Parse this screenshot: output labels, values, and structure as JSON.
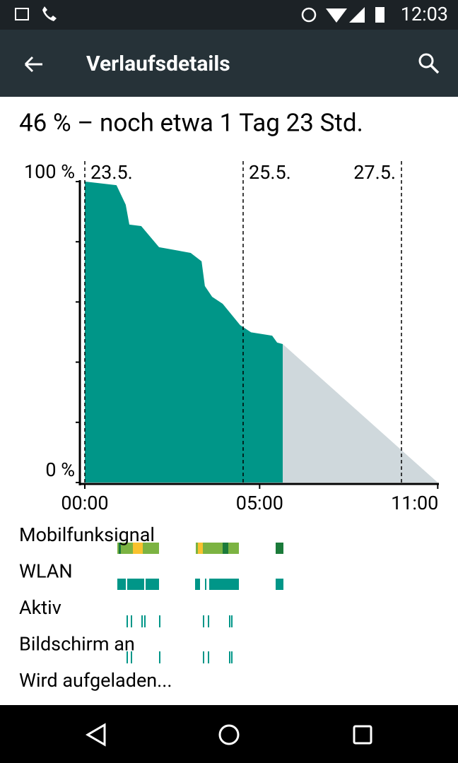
{
  "status_bar": {
    "time": "12:03"
  },
  "header": {
    "title": "Verlaufsdetails"
  },
  "summary": "46 % – noch etwa 1 Tag 23 Std.",
  "chart_data": {
    "type": "area",
    "xlim": [
      0,
      107
    ],
    "ylim": [
      0,
      100
    ],
    "yticks": [
      {
        "value": 100,
        "label": "100 %"
      },
      {
        "value": 0,
        "label": "0 %"
      }
    ],
    "minor_yticks": [
      20,
      40,
      60,
      80
    ],
    "xticks": [
      {
        "value": 0,
        "label": "00:00"
      },
      {
        "value": 53,
        "label": "05:00"
      },
      {
        "value": 107,
        "label": "11:00"
      }
    ],
    "date_markers": [
      {
        "value": 0,
        "label": "23.5."
      },
      {
        "value": 48,
        "label": "25.5."
      },
      {
        "value": 96,
        "label": "27.5."
      }
    ],
    "series": [
      {
        "color": "#009688",
        "x": [
          0,
          9.6,
          12.4,
          13.5,
          17.1,
          22.5,
          32.1,
          35.4,
          36.4,
          38.6,
          41.8,
          47.1,
          50.4,
          56.8,
          58.3,
          60
        ],
        "values": [
          100,
          98.8,
          92.3,
          85.7,
          85.2,
          78.2,
          76.3,
          73.5,
          65.3,
          61.7,
          59.4,
          52.3,
          49.9,
          48.8,
          46.5,
          46
        ]
      },
      {
        "color": "#cfd8dc",
        "x": [
          60,
          107
        ],
        "values": [
          46,
          0
        ]
      }
    ]
  },
  "tracks": [
    "Mobilfunksignal",
    "WLAN",
    "Aktiv",
    "Bildschirm an",
    "Wird aufgeladen..."
  ]
}
